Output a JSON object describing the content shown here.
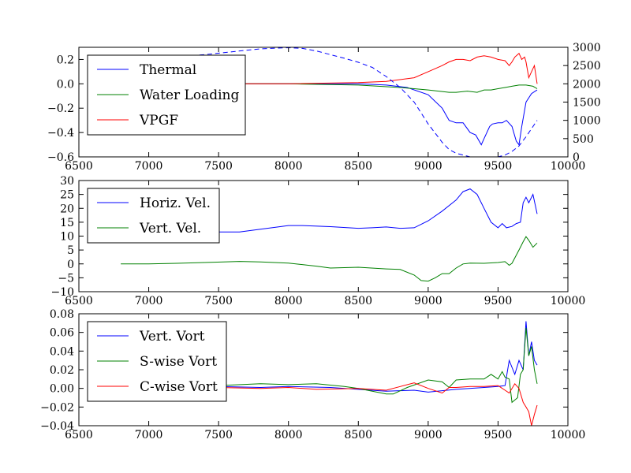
{
  "chart_data": [
    {
      "type": "line",
      "xlim": [
        6500,
        10000
      ],
      "xticks": [
        "6500",
        "7000",
        "7500",
        "8000",
        "8500",
        "9000",
        "9500",
        "10000"
      ],
      "ylim": [
        -0.6,
        0.3
      ],
      "yticks": [
        "−0.6",
        "−0.4",
        "−0.2",
        "0.0",
        "0.2"
      ],
      "y2lim": [
        0,
        3000
      ],
      "y2ticks": [
        "0",
        "500",
        "1000",
        "1500",
        "2000",
        "2500",
        "3000"
      ],
      "legend_loc": "upper-left",
      "series": [
        {
          "name": "Thermal",
          "color": "#0000ff",
          "axis": "left",
          "style": "solid",
          "x": [
            7500,
            8000,
            8500,
            8700,
            8850,
            9000,
            9100,
            9150,
            9200,
            9250,
            9300,
            9340,
            9380,
            9400,
            9440,
            9460,
            9500,
            9530,
            9560,
            9600,
            9630,
            9650,
            9670,
            9700,
            9740,
            9780
          ],
          "y": [
            0.0,
            0.0,
            0.0,
            -0.01,
            -0.03,
            -0.09,
            -0.2,
            -0.3,
            -0.32,
            -0.32,
            -0.4,
            -0.42,
            -0.5,
            -0.45,
            -0.35,
            -0.33,
            -0.32,
            -0.32,
            -0.3,
            -0.35,
            -0.47,
            -0.5,
            -0.35,
            -0.15,
            -0.08,
            -0.05
          ]
        },
        {
          "name": "Water Loading",
          "color": "#008000",
          "axis": "left",
          "style": "solid",
          "x": [
            7500,
            8000,
            8500,
            8800,
            9000,
            9150,
            9200,
            9280,
            9350,
            9400,
            9450,
            9500,
            9550,
            9600,
            9650,
            9700,
            9750,
            9780
          ],
          "y": [
            0.0,
            0.0,
            -0.01,
            -0.03,
            -0.05,
            -0.07,
            -0.07,
            -0.06,
            -0.07,
            -0.05,
            -0.05,
            -0.04,
            -0.03,
            -0.02,
            -0.01,
            -0.01,
            -0.02,
            -0.04
          ]
        },
        {
          "name": "VPGF",
          "color": "#ff0000",
          "axis": "left",
          "style": "solid",
          "x": [
            7500,
            8000,
            8500,
            8700,
            8900,
            9000,
            9100,
            9150,
            9200,
            9250,
            9300,
            9350,
            9400,
            9450,
            9500,
            9550,
            9580,
            9600,
            9620,
            9650,
            9670,
            9690,
            9700,
            9720,
            9740,
            9760,
            9780
          ],
          "y": [
            0.0,
            0.0,
            0.01,
            0.02,
            0.05,
            0.1,
            0.15,
            0.18,
            0.2,
            0.2,
            0.19,
            0.22,
            0.23,
            0.22,
            0.2,
            0.19,
            0.15,
            0.18,
            0.22,
            0.25,
            0.2,
            0.22,
            0.18,
            0.05,
            0.1,
            0.15,
            0.0
          ]
        },
        {
          "name": "",
          "color": "#0000ff",
          "axis": "right",
          "style": "dashed",
          "x": [
            6800,
            7000,
            7200,
            7400,
            7600,
            7800,
            8000,
            8100,
            8200,
            8300,
            8400,
            8500,
            8600,
            8700,
            8800,
            8900,
            9000,
            9100,
            9150,
            9200,
            9300,
            9400,
            9500,
            9550,
            9600,
            9650,
            9700,
            9780
          ],
          "y": [
            2650,
            2700,
            2750,
            2800,
            2880,
            2960,
            2990,
            2970,
            2900,
            2800,
            2700,
            2590,
            2450,
            2200,
            1900,
            1500,
            900,
            400,
            200,
            100,
            0,
            0,
            0,
            50,
            150,
            300,
            550,
            1000
          ]
        }
      ]
    },
    {
      "type": "line",
      "xlim": [
        6500,
        10000
      ],
      "xticks": [
        "6500",
        "7000",
        "7500",
        "8000",
        "8500",
        "9000",
        "9500",
        "10000"
      ],
      "ylim": [
        -10,
        30
      ],
      "yticks": [
        "−10",
        "−5",
        "0",
        "5",
        "10",
        "15",
        "20",
        "25",
        "30"
      ],
      "legend_loc": "upper-left",
      "series": [
        {
          "name": "Horiz. Vel.",
          "color": "#0000ff",
          "x": [
            7500,
            7650,
            7800,
            8000,
            8100,
            8300,
            8500,
            8600,
            8700,
            8800,
            8900,
            9000,
            9100,
            9200,
            9250,
            9300,
            9350,
            9400,
            9450,
            9500,
            9530,
            9560,
            9600,
            9630,
            9660,
            9680,
            9700,
            9720,
            9750,
            9780
          ],
          "y": [
            11.5,
            11.5,
            12.5,
            13.8,
            13.8,
            13.4,
            12.8,
            13.0,
            13.3,
            12.8,
            13.0,
            15.5,
            19,
            23,
            26,
            27,
            25,
            20,
            15,
            13,
            14.5,
            13,
            13.5,
            14.5,
            15,
            22,
            24,
            22,
            25,
            18
          ]
        },
        {
          "name": "Vert. Vel.",
          "color": "#008000",
          "x": [
            6800,
            7000,
            7200,
            7400,
            7650,
            7800,
            8000,
            8200,
            8300,
            8500,
            8700,
            8800,
            8900,
            8950,
            9000,
            9050,
            9100,
            9150,
            9200,
            9250,
            9300,
            9400,
            9500,
            9550,
            9580,
            9600,
            9650,
            9680,
            9700,
            9720,
            9750,
            9780
          ],
          "y": [
            0,
            0,
            0.2,
            0.5,
            0.9,
            0.7,
            0.3,
            -0.8,
            -1.5,
            -1.2,
            -1.8,
            -2,
            -4,
            -6,
            -6.2,
            -5,
            -3.5,
            -3.5,
            -1.5,
            0,
            0.3,
            0.2,
            0.5,
            0.8,
            -0.5,
            0.2,
            5,
            8,
            9.8,
            8.5,
            6,
            7.5
          ]
        }
      ]
    },
    {
      "type": "line",
      "xlim": [
        6500,
        10000
      ],
      "xticks": [
        "6500",
        "7000",
        "7500",
        "8000",
        "8500",
        "9000",
        "9500",
        "10000"
      ],
      "ylim": [
        -0.04,
        0.08
      ],
      "yticks": [
        "−0.04",
        "−0.02",
        "0.00",
        "0.02",
        "0.04",
        "0.06",
        "0.08"
      ],
      "legend_loc": "upper-left",
      "series": [
        {
          "name": "Vert. Vort",
          "color": "#0000ff",
          "x": [
            7500,
            7800,
            8000,
            8300,
            8500,
            8700,
            8900,
            9000,
            9200,
            9400,
            9500,
            9550,
            9580,
            9620,
            9650,
            9680,
            9700,
            9720,
            9740,
            9760,
            9780
          ],
          "y": [
            0.002,
            0.001,
            0.002,
            0.001,
            -0.001,
            -0.003,
            -0.002,
            -0.004,
            -0.001,
            0.001,
            0.002,
            0.003,
            0.03,
            0.015,
            0.03,
            0.02,
            0.072,
            0.035,
            0.05,
            0.03,
            0.025
          ]
        },
        {
          "name": "S-wise Vort",
          "color": "#008000",
          "x": [
            7500,
            7800,
            8000,
            8200,
            8400,
            8500,
            8600,
            8700,
            8750,
            8850,
            9000,
            9100,
            9150,
            9200,
            9300,
            9400,
            9450,
            9500,
            9530,
            9550,
            9580,
            9600,
            9640,
            9660,
            9680,
            9700,
            9720,
            9740,
            9760,
            9780
          ],
          "y": [
            0.003,
            0.005,
            0.004,
            0.005,
            0.002,
            0.0,
            -0.003,
            -0.006,
            -0.006,
            0.001,
            0.009,
            0.007,
            0.001,
            0.009,
            0.01,
            0.01,
            0.015,
            0.01,
            0.018,
            0.012,
            0.01,
            -0.015,
            -0.01,
            0.015,
            0.02,
            0.065,
            0.035,
            0.045,
            0.02,
            0.005
          ]
        },
        {
          "name": "C-wise Vort",
          "color": "#ff0000",
          "x": [
            7500,
            7800,
            8000,
            8200,
            8500,
            8700,
            8800,
            8900,
            9000,
            9100,
            9150,
            9200,
            9300,
            9400,
            9500,
            9550,
            9580,
            9620,
            9650,
            9680,
            9700,
            9720,
            9740,
            9760,
            9780
          ],
          "y": [
            0.001,
            0.0,
            0.001,
            -0.001,
            0.0,
            -0.002,
            0.002,
            0.006,
            0.0,
            -0.005,
            0.001,
            0.001,
            0.002,
            0.002,
            0.003,
            -0.002,
            -0.005,
            0.005,
            0.0,
            -0.015,
            -0.02,
            -0.025,
            -0.04,
            -0.028,
            -0.018
          ]
        }
      ]
    }
  ]
}
